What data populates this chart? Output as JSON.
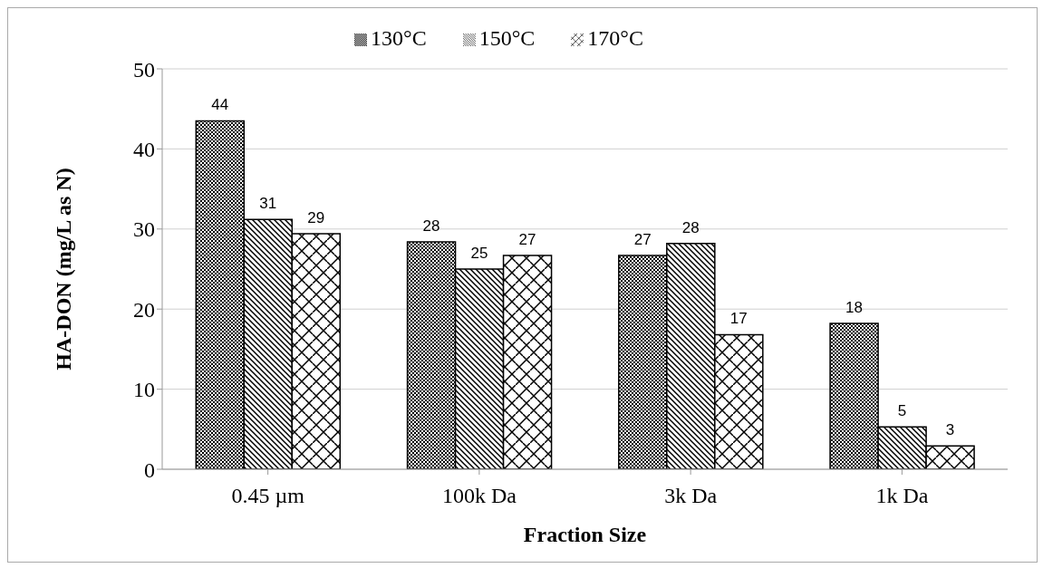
{
  "chart_data": {
    "type": "bar",
    "xlabel": "Fraction Size",
    "ylabel": "HA-DON (mg/L as N)",
    "categories": [
      "0.45 µm",
      "100k Da",
      "3k Da",
      "1k Da"
    ],
    "series": [
      {
        "name": "130°C",
        "color": "#000000",
        "values": [
          43.5,
          28.4,
          26.7,
          18.2
        ],
        "value_labels": [
          "44",
          "28",
          "27",
          "18"
        ]
      },
      {
        "name": "150°C",
        "color": "#000000",
        "values": [
          31.2,
          25.0,
          28.2,
          5.3
        ],
        "value_labels": [
          "31",
          "25",
          "28",
          "5"
        ]
      },
      {
        "name": "170°C",
        "color": "#000000",
        "values": [
          29.4,
          26.7,
          16.8,
          2.9
        ],
        "value_labels": [
          "29",
          "27",
          "17",
          "3"
        ]
      }
    ],
    "ylim": [
      0,
      50
    ],
    "yticks": [
      0,
      10,
      20,
      30,
      40,
      50
    ],
    "grid": "y",
    "legend": "top"
  }
}
